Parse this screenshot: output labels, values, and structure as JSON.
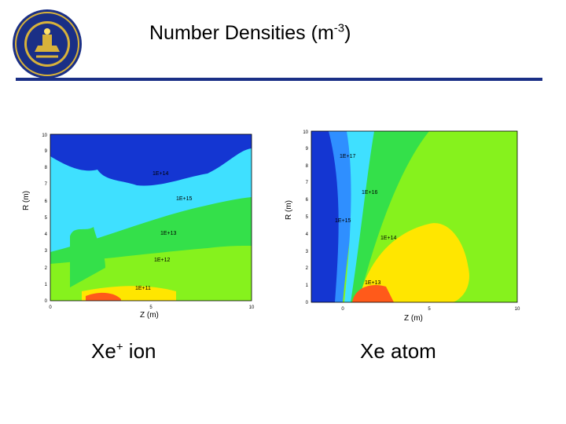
{
  "header": {
    "title": "Number Densities (m",
    "title_sup": "-3",
    "title_end": ")",
    "logo_text_top": "THE UNIVERSITY OF MICHIGAN",
    "logo_year": "1817",
    "rule_color": "#1a2f86"
  },
  "left_plot": {
    "ylabel": "R (m)",
    "xlabel": "Z (m)",
    "y_ticks": [
      "0",
      "1",
      "2",
      "3",
      "4",
      "5",
      "6",
      "7",
      "8",
      "9",
      "10"
    ],
    "x_ticks": [
      "0",
      "5",
      "10"
    ],
    "contour_labels": [
      "1E+11",
      "1E+12",
      "1E+13",
      "1E+14",
      "1E+15"
    ],
    "caption": "Xe",
    "caption_sup": "+",
    "caption_end": " ion"
  },
  "right_plot": {
    "ylabel": "R (m)",
    "xlabel": "Z (m)",
    "y_ticks": [
      "0",
      "1",
      "2",
      "3",
      "4",
      "5",
      "6",
      "7",
      "8",
      "9",
      "10"
    ],
    "x_ticks": [
      "0",
      "5",
      "10"
    ],
    "contour_labels": [
      "1E+13",
      "1E+14",
      "1E+15",
      "1E+16",
      "1E+17"
    ],
    "caption": "Xe atom"
  },
  "colors": {
    "navy": "#1436d2",
    "blue": "#2f8fff",
    "light_blue": "#3fe0ff",
    "green": "#34e04a",
    "lime": "#86f21d",
    "yellow": "#ffe600",
    "orange": "#ff5a1a",
    "red": "#e82a14"
  }
}
